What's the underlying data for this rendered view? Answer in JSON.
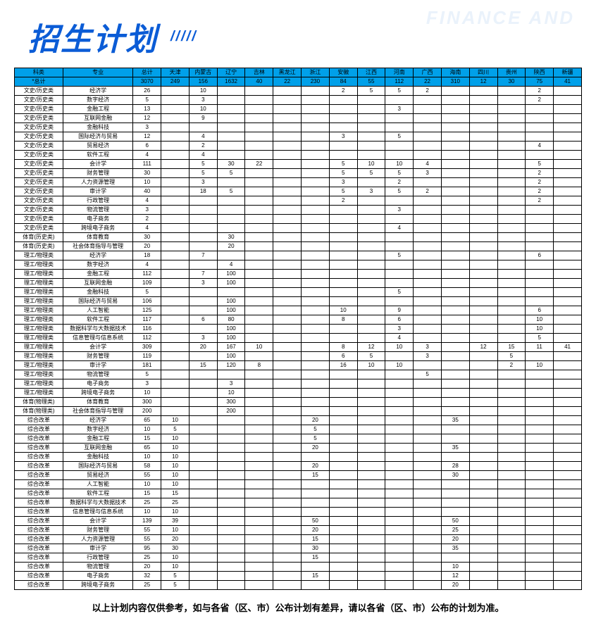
{
  "title": "招生计划",
  "slashes": "/////",
  "watermark": "FINANCE AND",
  "footer": "以上计划内容仅供参考，如与各省（区、市）公布计划有差异，请以各省（区、市）公布的计划为准。",
  "columns": [
    "科类",
    "专业",
    "总计",
    "天津",
    "内蒙古",
    "辽宁",
    "吉林",
    "黑龙江",
    "浙江",
    "安徽",
    "江西",
    "河南",
    "广西",
    "海南",
    "四川",
    "贵州",
    "陕西",
    "新疆"
  ],
  "totalRow": [
    "*总计",
    "",
    "3070",
    "249",
    "156",
    "1632",
    "40",
    "22",
    "230",
    "84",
    "55",
    "112",
    "22",
    "310",
    "12",
    "30",
    "75",
    "41"
  ],
  "rows": [
    [
      "文史/历史类",
      "经济学",
      "26",
      "",
      "10",
      "",
      "",
      "",
      "",
      "2",
      "5",
      "5",
      "2",
      "",
      "",
      "",
      "2",
      ""
    ],
    [
      "文史/历史类",
      "数字经济",
      "5",
      "",
      "3",
      "",
      "",
      "",
      "",
      "",
      "",
      "",
      "",
      "",
      "",
      "",
      "2",
      ""
    ],
    [
      "文史/历史类",
      "金融工程",
      "13",
      "",
      "10",
      "",
      "",
      "",
      "",
      "",
      "",
      "3",
      "",
      "",
      "",
      "",
      "",
      ""
    ],
    [
      "文史/历史类",
      "互联网金融",
      "12",
      "",
      "9",
      "",
      "",
      "",
      "",
      "",
      "",
      "",
      "",
      "",
      "",
      "",
      "",
      ""
    ],
    [
      "文史/历史类",
      "金融科技",
      "3",
      "",
      "",
      "",
      "",
      "",
      "",
      "",
      "",
      "",
      "",
      "",
      "",
      "",
      "",
      ""
    ],
    [
      "文史/历史类",
      "国际经济与贸易",
      "12",
      "",
      "4",
      "",
      "",
      "",
      "",
      "3",
      "",
      "5",
      "",
      "",
      "",
      "",
      "",
      ""
    ],
    [
      "文史/历史类",
      "贸易经济",
      "6",
      "",
      "2",
      "",
      "",
      "",
      "",
      "",
      "",
      "",
      "",
      "",
      "",
      "",
      "4",
      ""
    ],
    [
      "文史/历史类",
      "软件工程",
      "4",
      "",
      "4",
      "",
      "",
      "",
      "",
      "",
      "",
      "",
      "",
      "",
      "",
      "",
      "",
      ""
    ],
    [
      "文史/历史类",
      "会计学",
      "111",
      "",
      "5",
      "30",
      "22",
      "",
      "",
      "5",
      "10",
      "10",
      "4",
      "",
      "",
      "",
      "5",
      ""
    ],
    [
      "文史/历史类",
      "财务管理",
      "30",
      "",
      "5",
      "5",
      "",
      "",
      "",
      "5",
      "5",
      "5",
      "3",
      "",
      "",
      "",
      "2",
      ""
    ],
    [
      "文史/历史类",
      "人力资源管理",
      "10",
      "",
      "3",
      "",
      "",
      "",
      "",
      "3",
      "",
      "2",
      "",
      "",
      "",
      "",
      "2",
      ""
    ],
    [
      "文史/历史类",
      "审计学",
      "40",
      "",
      "18",
      "5",
      "",
      "",
      "",
      "5",
      "3",
      "5",
      "2",
      "",
      "",
      "",
      "2",
      ""
    ],
    [
      "文史/历史类",
      "行政管理",
      "4",
      "",
      "",
      "",
      "",
      "",
      "",
      "2",
      "",
      "",
      "",
      "",
      "",
      "",
      "2",
      ""
    ],
    [
      "文史/历史类",
      "物流管理",
      "3",
      "",
      "",
      "",
      "",
      "",
      "",
      "",
      "",
      "3",
      "",
      "",
      "",
      "",
      "",
      ""
    ],
    [
      "文史/历史类",
      "电子商务",
      "2",
      "",
      "",
      "",
      "",
      "",
      "",
      "",
      "",
      "",
      "",
      "",
      "",
      "",
      "",
      ""
    ],
    [
      "文史/历史类",
      "跨境电子商务",
      "4",
      "",
      "",
      "",
      "",
      "",
      "",
      "",
      "",
      "4",
      "",
      "",
      "",
      "",
      "",
      ""
    ],
    [
      "体育(历史类)",
      "体育教育",
      "30",
      "",
      "",
      "30",
      "",
      "",
      "",
      "",
      "",
      "",
      "",
      "",
      "",
      "",
      "",
      ""
    ],
    [
      "体育(历史类)",
      "社会体育指导与管理",
      "20",
      "",
      "",
      "20",
      "",
      "",
      "",
      "",
      "",
      "",
      "",
      "",
      "",
      "",
      "",
      ""
    ],
    [
      "理工/物理类",
      "经济学",
      "18",
      "",
      "7",
      "",
      "",
      "",
      "",
      "",
      "",
      "5",
      "",
      "",
      "",
      "",
      "6",
      ""
    ],
    [
      "理工/物理类",
      "数字经济",
      "4",
      "",
      "",
      "4",
      "",
      "",
      "",
      "",
      "",
      "",
      "",
      "",
      "",
      "",
      "",
      ""
    ],
    [
      "理工/物理类",
      "金融工程",
      "112",
      "",
      "7",
      "100",
      "",
      "",
      "",
      "",
      "",
      "",
      "",
      "",
      "",
      "",
      "",
      ""
    ],
    [
      "理工/物理类",
      "互联网金融",
      "109",
      "",
      "3",
      "100",
      "",
      "",
      "",
      "",
      "",
      "",
      "",
      "",
      "",
      "",
      "",
      ""
    ],
    [
      "理工/物理类",
      "金融科技",
      "5",
      "",
      "",
      "",
      "",
      "",
      "",
      "",
      "",
      "5",
      "",
      "",
      "",
      "",
      "",
      ""
    ],
    [
      "理工/物理类",
      "国际经济与贸易",
      "106",
      "",
      "",
      "100",
      "",
      "",
      "",
      "",
      "",
      "",
      "",
      "",
      "",
      "",
      "",
      ""
    ],
    [
      "理工/物理类",
      "人工智能",
      "125",
      "",
      "",
      "100",
      "",
      "",
      "",
      "10",
      "",
      "9",
      "",
      "",
      "",
      "",
      "6",
      ""
    ],
    [
      "理工/物理类",
      "软件工程",
      "117",
      "",
      "6",
      "80",
      "",
      "",
      "",
      "8",
      "",
      "6",
      "",
      "",
      "",
      "",
      "10",
      ""
    ],
    [
      "理工/物理类",
      "数据科学与大数据技术",
      "116",
      "",
      "",
      "100",
      "",
      "",
      "",
      "",
      "",
      "3",
      "",
      "",
      "",
      "",
      "10",
      ""
    ],
    [
      "理工/物理类",
      "信息管理与信息系统",
      "112",
      "",
      "3",
      "100",
      "",
      "",
      "",
      "",
      "",
      "4",
      "",
      "",
      "",
      "",
      "5",
      ""
    ],
    [
      "理工/物理类",
      "会计学",
      "309",
      "",
      "20",
      "167",
      "10",
      "",
      "",
      "8",
      "12",
      "10",
      "3",
      "",
      "12",
      "15",
      "11",
      "41"
    ],
    [
      "理工/物理类",
      "财务管理",
      "119",
      "",
      "",
      "100",
      "",
      "",
      "",
      "6",
      "5",
      "",
      "3",
      "",
      "",
      "5",
      "",
      ""
    ],
    [
      "理工/物理类",
      "审计学",
      "181",
      "",
      "15",
      "120",
      "8",
      "",
      "",
      "16",
      "10",
      "10",
      "",
      "",
      "",
      "2",
      "10",
      ""
    ],
    [
      "理工/物理类",
      "物流管理",
      "5",
      "",
      "",
      "",
      "",
      "",
      "",
      "",
      "",
      "",
      "5",
      "",
      "",
      "",
      "",
      ""
    ],
    [
      "理工/物理类",
      "电子商务",
      "3",
      "",
      "",
      "3",
      "",
      "",
      "",
      "",
      "",
      "",
      "",
      "",
      "",
      "",
      "",
      ""
    ],
    [
      "理工/物理类",
      "跨境电子商务",
      "10",
      "",
      "",
      "10",
      "",
      "",
      "",
      "",
      "",
      "",
      "",
      "",
      "",
      "",
      "",
      ""
    ],
    [
      "体育(物理类)",
      "体育教育",
      "300",
      "",
      "",
      "300",
      "",
      "",
      "",
      "",
      "",
      "",
      "",
      "",
      "",
      "",
      "",
      ""
    ],
    [
      "体育(物理类)",
      "社会体育指导与管理",
      "200",
      "",
      "",
      "200",
      "",
      "",
      "",
      "",
      "",
      "",
      "",
      "",
      "",
      "",
      "",
      ""
    ],
    [
      "综合改革",
      "经济学",
      "65",
      "10",
      "",
      "",
      "",
      "",
      "20",
      "",
      "",
      "",
      "",
      "35",
      "",
      "",
      "",
      ""
    ],
    [
      "综合改革",
      "数字经济",
      "10",
      "5",
      "",
      "",
      "",
      "",
      "5",
      "",
      "",
      "",
      "",
      "",
      "",
      "",
      "",
      ""
    ],
    [
      "综合改革",
      "金融工程",
      "15",
      "10",
      "",
      "",
      "",
      "",
      "5",
      "",
      "",
      "",
      "",
      "",
      "",
      "",
      "",
      ""
    ],
    [
      "综合改革",
      "互联网金融",
      "65",
      "10",
      "",
      "",
      "",
      "",
      "20",
      "",
      "",
      "",
      "",
      "35",
      "",
      "",
      "",
      ""
    ],
    [
      "综合改革",
      "金融科技",
      "10",
      "10",
      "",
      "",
      "",
      "",
      "",
      "",
      "",
      "",
      "",
      "",
      "",
      "",
      "",
      ""
    ],
    [
      "综合改革",
      "国际经济与贸易",
      "58",
      "10",
      "",
      "",
      "",
      "",
      "20",
      "",
      "",
      "",
      "",
      "28",
      "",
      "",
      "",
      ""
    ],
    [
      "综合改革",
      "贸易经济",
      "55",
      "10",
      "",
      "",
      "",
      "",
      "15",
      "",
      "",
      "",
      "",
      "30",
      "",
      "",
      "",
      ""
    ],
    [
      "综合改革",
      "人工智能",
      "10",
      "10",
      "",
      "",
      "",
      "",
      "",
      "",
      "",
      "",
      "",
      "",
      "",
      "",
      "",
      ""
    ],
    [
      "综合改革",
      "软件工程",
      "15",
      "15",
      "",
      "",
      "",
      "",
      "",
      "",
      "",
      "",
      "",
      "",
      "",
      "",
      "",
      ""
    ],
    [
      "综合改革",
      "数据科学与大数据技术",
      "25",
      "25",
      "",
      "",
      "",
      "",
      "",
      "",
      "",
      "",
      "",
      "",
      "",
      "",
      "",
      ""
    ],
    [
      "综合改革",
      "信息管理与信息系统",
      "10",
      "10",
      "",
      "",
      "",
      "",
      "",
      "",
      "",
      "",
      "",
      "",
      "",
      "",
      "",
      ""
    ],
    [
      "综合改革",
      "会计学",
      "139",
      "39",
      "",
      "",
      "",
      "",
      "50",
      "",
      "",
      "",
      "",
      "50",
      "",
      "",
      "",
      ""
    ],
    [
      "综合改革",
      "财务管理",
      "55",
      "10",
      "",
      "",
      "",
      "",
      "20",
      "",
      "",
      "",
      "",
      "25",
      "",
      "",
      "",
      ""
    ],
    [
      "综合改革",
      "人力资源管理",
      "55",
      "20",
      "",
      "",
      "",
      "",
      "15",
      "",
      "",
      "",
      "",
      "20",
      "",
      "",
      "",
      ""
    ],
    [
      "综合改革",
      "审计学",
      "95",
      "30",
      "",
      "",
      "",
      "",
      "30",
      "",
      "",
      "",
      "",
      "35",
      "",
      "",
      "",
      ""
    ],
    [
      "综合改革",
      "行政管理",
      "25",
      "10",
      "",
      "",
      "",
      "",
      "15",
      "",
      "",
      "",
      "",
      "",
      "",
      "",
      "",
      ""
    ],
    [
      "综合改革",
      "物流管理",
      "20",
      "10",
      "",
      "",
      "",
      "",
      "",
      "",
      "",
      "",
      "",
      "10",
      "",
      "",
      "",
      ""
    ],
    [
      "综合改革",
      "电子商务",
      "32",
      "5",
      "",
      "",
      "",
      "",
      "15",
      "",
      "",
      "",
      "",
      "12",
      "",
      "",
      "",
      ""
    ],
    [
      "综合改革",
      "跨境电子商务",
      "25",
      "5",
      "",
      "",
      "",
      "",
      "",
      "",
      "",
      "",
      "",
      "20",
      "",
      "",
      "",
      ""
    ]
  ],
  "styles": {
    "header_bg": "#00a0e9",
    "title_color": "#0b5cd6",
    "border_color": "#000000"
  }
}
